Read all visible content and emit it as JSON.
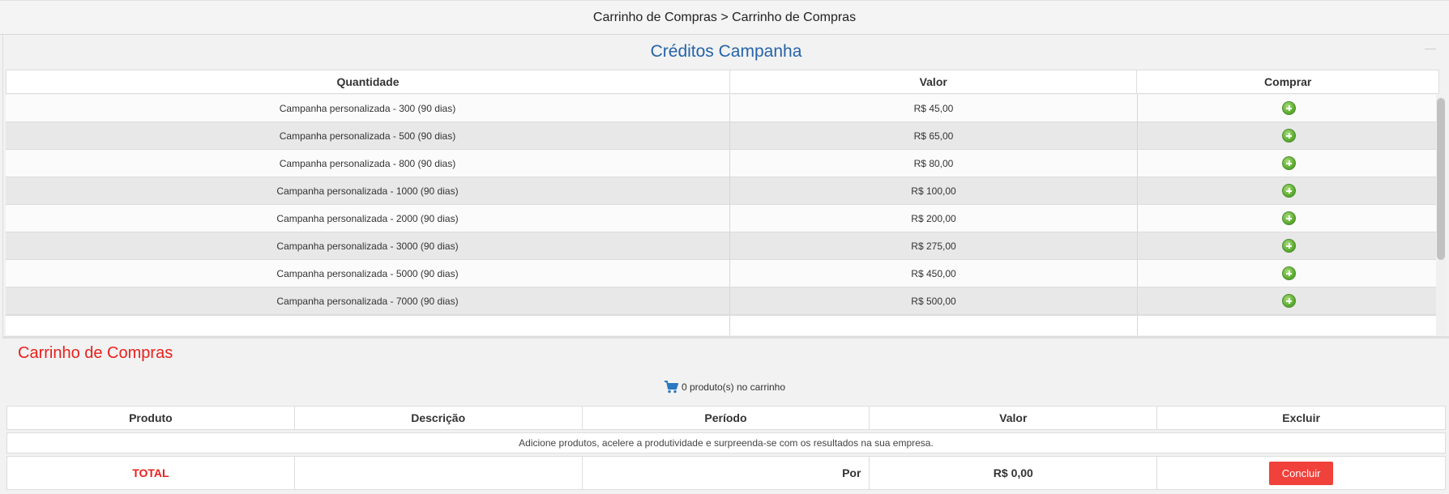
{
  "breadcrumb": "Carrinho de Compras > Carrinho de Compras",
  "credits": {
    "title": "Créditos Campanha",
    "columns": [
      "Quantidade",
      "Valor",
      "Comprar"
    ],
    "rows": [
      {
        "quantidade": "Campanha personalizada - 300 (90 dias)",
        "valor": "R$ 45,00"
      },
      {
        "quantidade": "Campanha personalizada - 500 (90 dias)",
        "valor": "R$ 65,00"
      },
      {
        "quantidade": "Campanha personalizada - 800 (90 dias)",
        "valor": "R$ 80,00"
      },
      {
        "quantidade": "Campanha personalizada - 1000 (90 dias)",
        "valor": "R$ 100,00"
      },
      {
        "quantidade": "Campanha personalizada - 2000 (90 dias)",
        "valor": "R$ 200,00"
      },
      {
        "quantidade": "Campanha personalizada - 3000 (90 dias)",
        "valor": "R$ 275,00"
      },
      {
        "quantidade": "Campanha personalizada - 5000 (90 dias)",
        "valor": "R$ 450,00"
      },
      {
        "quantidade": "Campanha personalizada - 7000 (90 dias)",
        "valor": "R$ 500,00"
      }
    ],
    "buy_icon": "plus-circle-icon"
  },
  "cart": {
    "title": "Carrinho de Compras",
    "count_text": "0 produto(s) no carrinho",
    "icon": "cart-icon",
    "columns": [
      "Produto",
      "Descrição",
      "Período",
      "Valor",
      "Excluir"
    ],
    "empty_message": "Adicione produtos, acelere a produtividade e surpreenda-se com os resultados na sua empresa.",
    "total_label": "TOTAL",
    "por_label": "Por",
    "total_value": "R$ 0,00",
    "conclude_button": "Concluir"
  },
  "colors": {
    "title_blue": "#2563a8",
    "accent_red": "#e8201c",
    "button_red": "#f0413a",
    "plus_green": "#5eae32"
  }
}
